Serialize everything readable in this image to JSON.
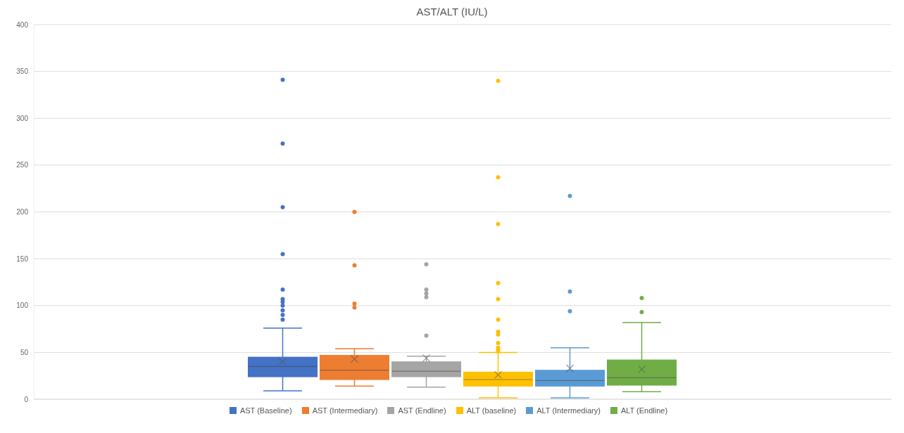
{
  "chart_data": {
    "type": "box",
    "title": "AST/ALT (IU/L)",
    "categories": [
      null
    ],
    "ylim": [
      0,
      400
    ],
    "yticks": [
      0,
      50,
      100,
      150,
      200,
      250,
      300,
      350,
      400
    ],
    "grid": "y",
    "legend": "bottom",
    "marker": "circle",
    "series": [
      {
        "name": "AST (Baseline)",
        "color": "#4472c4",
        "boxes": [
          {
            "low": 9,
            "q1": 24,
            "median": 35,
            "q3": 45,
            "high": 76,
            "mean": 40,
            "outliers": [
              341,
              273,
              205,
              155,
              117,
              107,
              104,
              100,
              95,
              90,
              85
            ]
          }
        ]
      },
      {
        "name": "AST (Intermediary)",
        "color": "#ed7d31",
        "boxes": [
          {
            "low": 14,
            "q1": 21,
            "median": 31,
            "q3": 47,
            "high": 54,
            "mean": 43,
            "outliers": [
              200,
              143,
              102,
              98
            ]
          }
        ]
      },
      {
        "name": "AST (Endline)",
        "color": "#a5a5a5",
        "boxes": [
          {
            "low": 13,
            "q1": 24,
            "median": 30,
            "q3": 40,
            "high": 46,
            "mean": 44,
            "outliers": [
              144,
              117,
              113,
              109,
              68
            ]
          }
        ]
      },
      {
        "name": "ALT (baseline)",
        "color": "#ffc000",
        "boxes": [
          {
            "low": 1.5,
            "q1": 14,
            "median": 21,
            "q3": 29,
            "high": 50,
            "mean": 26,
            "outliers": [
              340,
              237,
              187,
              124,
              107,
              85,
              72,
              69,
              60,
              55,
              53,
              51
            ]
          }
        ]
      },
      {
        "name": "ALT (Intermediary)",
        "color": "#5b9bd5",
        "boxes": [
          {
            "low": 1.5,
            "q1": 14,
            "median": 20,
            "q3": 31,
            "high": 55,
            "mean": 33,
            "outliers": [
              217,
              115,
              94
            ]
          }
        ]
      },
      {
        "name": "ALT (Endline)",
        "color": "#70ad47",
        "boxes": [
          {
            "low": 8,
            "q1": 15,
            "median": 23,
            "q3": 42,
            "high": 82,
            "mean": 32,
            "outliers": [
              108,
              93
            ]
          }
        ]
      }
    ]
  }
}
